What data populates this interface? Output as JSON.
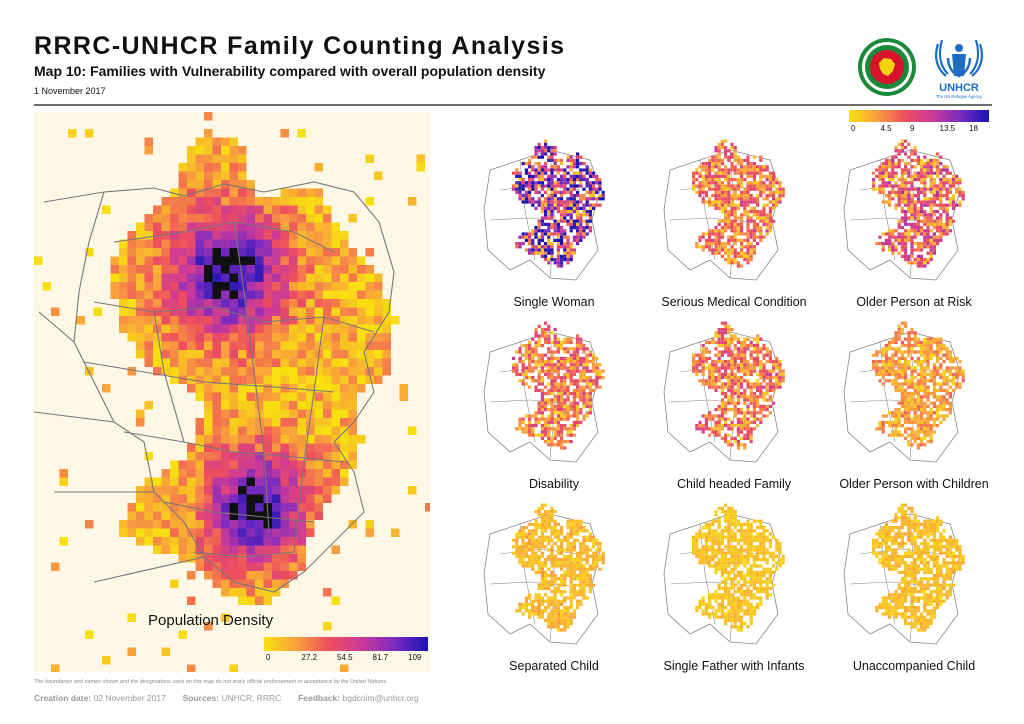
{
  "header": {
    "title": "RRRC-UNHCR Family Counting Analysis",
    "subtitle": "Map 10: Families with Vulnerability compared with overall population density",
    "date": "1 November 2017"
  },
  "logos": {
    "bangladesh_seal_icon": "bangladesh-government-seal",
    "unhcr_name": "UNHCR",
    "unhcr_tagline": "The UN Refugee Agency"
  },
  "main_map": {
    "label": "Population Density",
    "legend": {
      "ticks": [
        "0",
        "27.2",
        "54.5",
        "81.7",
        "109"
      ],
      "colors": [
        "#f8e010",
        "#f9a03c",
        "#ee4e5e",
        "#c93a9a",
        "#7a2bbf",
        "#1a14b4"
      ]
    }
  },
  "small_maps": {
    "legend": {
      "ticks": [
        "0",
        "4.5",
        "9",
        "13.5",
        "18"
      ],
      "colors": [
        "#f8e010",
        "#f9a03c",
        "#ee4e5e",
        "#c93a9a",
        "#7a2bbf",
        "#1a14b4"
      ]
    },
    "items": [
      {
        "label": "Single Woman",
        "intensity": 0.85
      },
      {
        "label": "Serious Medical Condition",
        "intensity": 0.35
      },
      {
        "label": "Older Person at Risk",
        "intensity": 0.45
      },
      {
        "label": "Disability",
        "intensity": 0.35
      },
      {
        "label": "Child headed Family",
        "intensity": 0.35
      },
      {
        "label": "Older Person with Children",
        "intensity": 0.2
      },
      {
        "label": "Separated Child",
        "intensity": 0.1
      },
      {
        "label": "Single Father with Infants",
        "intensity": 0.05
      },
      {
        "label": "Unaccompanied Child",
        "intensity": 0.08
      }
    ]
  },
  "footer": {
    "disclaimer": "The boundaries and names shown and the designations used on this map do not imply official endorsement or acceptance by the United Nations.",
    "creation_label": "Creation date:",
    "creation_value": "02 November 2017",
    "sources_label": "Sources:",
    "sources_value": "UNHCR, RRRC",
    "feedback_label": "Feedback:",
    "feedback_value": "bgdcoim@unhcr.org"
  }
}
